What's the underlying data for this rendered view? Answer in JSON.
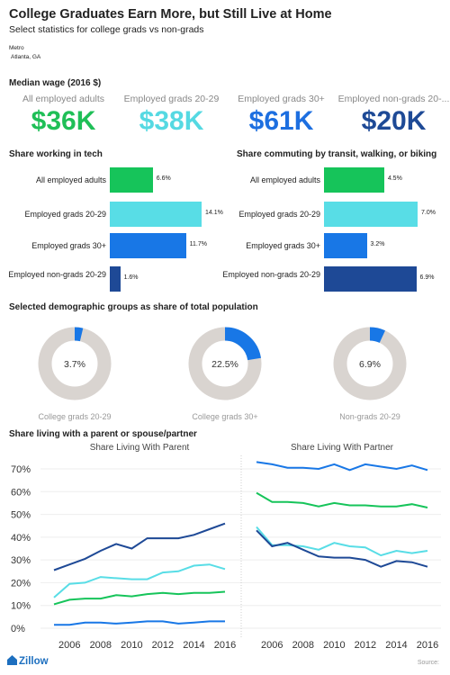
{
  "header": {
    "title": "College Graduates Earn More, but Still Live at Home",
    "subtitle": "Select statistics for college grads vs non-grads",
    "metro_label": "Metro",
    "metro_value": "Atlanta, GA"
  },
  "wage": {
    "title": "Median wage (2016 $)",
    "items": [
      {
        "label": "All employed adults",
        "value": "$36K",
        "color": "#1fbf57"
      },
      {
        "label": "Employed grads 20-29",
        "value": "$38K",
        "color": "#55d9e2"
      },
      {
        "label": "Employed grads 30+",
        "value": "$61K",
        "color": "#1d6fe0"
      },
      {
        "label": "Employed non-grads 20-...",
        "value": "$20K",
        "color": "#1e4a96"
      }
    ]
  },
  "colors": {
    "all": "#16c45a",
    "grads2029": "#58dde6",
    "grads30": "#1877e6",
    "nongrads": "#1e4996",
    "donut_bg": "#d9d4d0",
    "grid": "#eeeeee"
  },
  "chart_data": [
    {
      "type": "bar",
      "title": "Share working in tech",
      "categories": [
        "All employed adults",
        "Employed grads 20-29",
        "Employed grads 30+",
        "Employed non-grads 20-29"
      ],
      "values": [
        6.6,
        14.1,
        11.7,
        1.6
      ],
      "labels": [
        "6.6%",
        "14.1%",
        "11.7%",
        "1.6%"
      ]
    },
    {
      "type": "bar",
      "title": "Share commuting by transit, walking, or biking",
      "categories": [
        "All employed adults",
        "Employed grads 20-29",
        "Employed grads 30+",
        "Employed non-grads 20-29"
      ],
      "values": [
        4.5,
        7.0,
        3.2,
        6.9
      ],
      "labels": [
        "4.5%",
        "7.0%",
        "3.2%",
        "6.9%"
      ]
    },
    {
      "type": "pie",
      "title": "Selected demographic groups as share of total population",
      "slices": [
        {
          "name": "College grads 20-29",
          "value": 3.7,
          "label": "3.7%"
        },
        {
          "name": "College grads 30+",
          "value": 22.5,
          "label": "22.5%"
        },
        {
          "name": "Non-grads 20-29",
          "value": 6.9,
          "label": "6.9%"
        }
      ]
    },
    {
      "type": "line",
      "title": "Share living with a parent or spouse/partner",
      "panels": [
        {
          "title": "Share Living With Parent",
          "x": [
            2005,
            2006,
            2007,
            2008,
            2009,
            2010,
            2011,
            2012,
            2013,
            2014,
            2015,
            2016
          ],
          "series": [
            {
              "values": [
                25.5,
                28,
                30.5,
                34,
                37,
                35,
                39.5,
                39.5,
                39.5,
                41,
                43.5,
                46
              ]
            },
            {
              "values": [
                13.5,
                19.5,
                20,
                22.5,
                22,
                21.5,
                21.5,
                24.5,
                25,
                27.5,
                28,
                26
              ]
            },
            {
              "values": [
                10.5,
                12.5,
                13,
                13,
                14.5,
                14,
                15,
                15.5,
                15,
                15.5,
                15.5,
                16
              ]
            },
            {
              "values": [
                1.5,
                1.5,
                2.5,
                2.5,
                2,
                2.5,
                3,
                3,
                2,
                2.5,
                3,
                3
              ]
            }
          ]
        },
        {
          "title": "Share Living With Partner",
          "x": [
            2005,
            2006,
            2007,
            2008,
            2009,
            2010,
            2011,
            2012,
            2013,
            2014,
            2015,
            2016
          ],
          "series": [
            {
              "values": [
                73,
                72,
                70.5,
                70.5,
                70,
                72,
                69.5,
                72,
                71,
                70,
                71.5,
                69.5
              ]
            },
            {
              "values": [
                59.5,
                55.5,
                55.5,
                55,
                53.5,
                55,
                54,
                54,
                53.5,
                53.5,
                54.5,
                53
              ]
            },
            {
              "values": [
                44.5,
                36.5,
                36.5,
                36,
                34.5,
                37.5,
                36,
                35.5,
                32,
                34,
                33,
                34
              ]
            },
            {
              "values": [
                43,
                36,
                37.5,
                34.5,
                31.5,
                31,
                31,
                30,
                27,
                29.5,
                29,
                27
              ]
            }
          ]
        }
      ],
      "ylim": [
        0,
        75
      ],
      "yticks": [
        "0%",
        "10%",
        "20%",
        "30%",
        "40%",
        "50%",
        "60%",
        "70%"
      ],
      "xticks": [
        "2006",
        "2008",
        "2010",
        "2012",
        "2014",
        "2016"
      ]
    }
  ],
  "footer": {
    "logo": "Zillow",
    "source": "Source:"
  }
}
